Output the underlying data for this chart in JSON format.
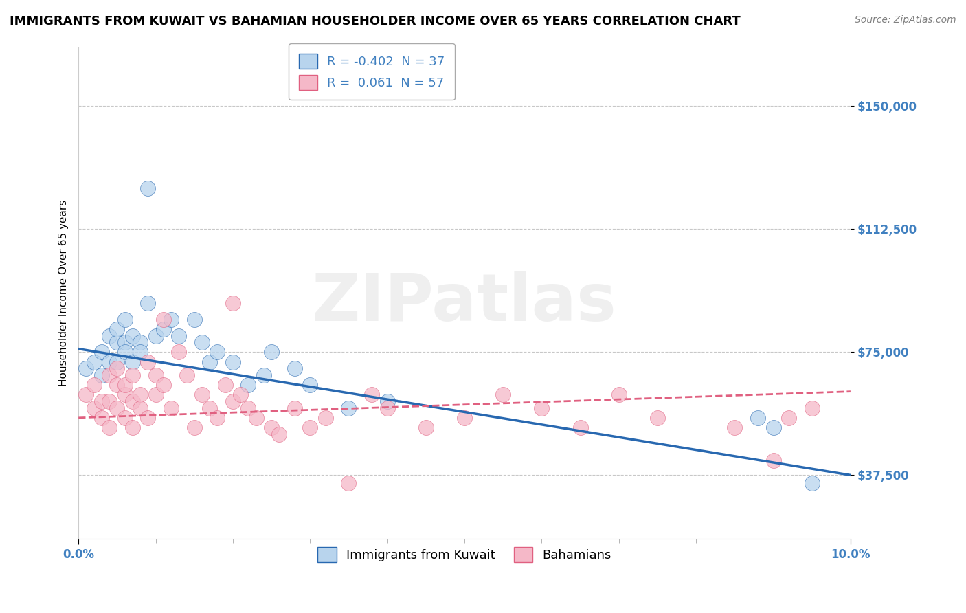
{
  "title": "IMMIGRANTS FROM KUWAIT VS BAHAMIAN HOUSEHOLDER INCOME OVER 65 YEARS CORRELATION CHART",
  "source": "Source: ZipAtlas.com",
  "ylabel": "Householder Income Over 65 years",
  "xlim": [
    0.0,
    0.1
  ],
  "ylim": [
    18000,
    168000
  ],
  "yticks": [
    37500,
    75000,
    112500,
    150000
  ],
  "ytick_labels": [
    "$37,500",
    "$75,000",
    "$112,500",
    "$150,000"
  ],
  "blue_R": -0.402,
  "blue_N": 37,
  "pink_R": 0.061,
  "pink_N": 57,
  "blue_color": "#b8d4ed",
  "pink_color": "#f5b8c8",
  "blue_line_color": "#2868b0",
  "pink_line_color": "#e06080",
  "label_color": "#4080c0",
  "grid_color": "#c8c8c8",
  "background_color": "#ffffff",
  "blue_x": [
    0.001,
    0.002,
    0.003,
    0.003,
    0.004,
    0.004,
    0.005,
    0.005,
    0.005,
    0.006,
    0.006,
    0.006,
    0.007,
    0.007,
    0.008,
    0.008,
    0.009,
    0.009,
    0.01,
    0.011,
    0.012,
    0.013,
    0.015,
    0.016,
    0.017,
    0.018,
    0.02,
    0.022,
    0.024,
    0.025,
    0.028,
    0.03,
    0.035,
    0.04,
    0.088,
    0.09,
    0.095
  ],
  "blue_y": [
    70000,
    72000,
    68000,
    75000,
    72000,
    80000,
    78000,
    72000,
    82000,
    78000,
    85000,
    75000,
    80000,
    72000,
    78000,
    75000,
    125000,
    90000,
    80000,
    82000,
    85000,
    80000,
    85000,
    78000,
    72000,
    75000,
    72000,
    65000,
    68000,
    75000,
    70000,
    65000,
    58000,
    60000,
    55000,
    52000,
    35000
  ],
  "pink_x": [
    0.001,
    0.002,
    0.002,
    0.003,
    0.003,
    0.004,
    0.004,
    0.004,
    0.005,
    0.005,
    0.005,
    0.006,
    0.006,
    0.006,
    0.007,
    0.007,
    0.007,
    0.008,
    0.008,
    0.009,
    0.009,
    0.01,
    0.01,
    0.011,
    0.011,
    0.012,
    0.013,
    0.014,
    0.015,
    0.016,
    0.017,
    0.018,
    0.019,
    0.02,
    0.02,
    0.021,
    0.022,
    0.023,
    0.025,
    0.026,
    0.028,
    0.03,
    0.032,
    0.035,
    0.038,
    0.04,
    0.045,
    0.05,
    0.055,
    0.06,
    0.065,
    0.07,
    0.075,
    0.085,
    0.09,
    0.092,
    0.095
  ],
  "pink_y": [
    62000,
    58000,
    65000,
    60000,
    55000,
    68000,
    60000,
    52000,
    65000,
    58000,
    70000,
    62000,
    55000,
    65000,
    60000,
    68000,
    52000,
    62000,
    58000,
    55000,
    72000,
    68000,
    62000,
    65000,
    85000,
    58000,
    75000,
    68000,
    52000,
    62000,
    58000,
    55000,
    65000,
    90000,
    60000,
    62000,
    58000,
    55000,
    52000,
    50000,
    58000,
    52000,
    55000,
    35000,
    62000,
    58000,
    52000,
    55000,
    62000,
    58000,
    52000,
    62000,
    55000,
    52000,
    42000,
    55000,
    58000
  ],
  "watermark_text": "ZIPatlas",
  "title_fontsize": 13,
  "axis_label_fontsize": 11,
  "tick_fontsize": 12,
  "legend_fontsize": 13
}
